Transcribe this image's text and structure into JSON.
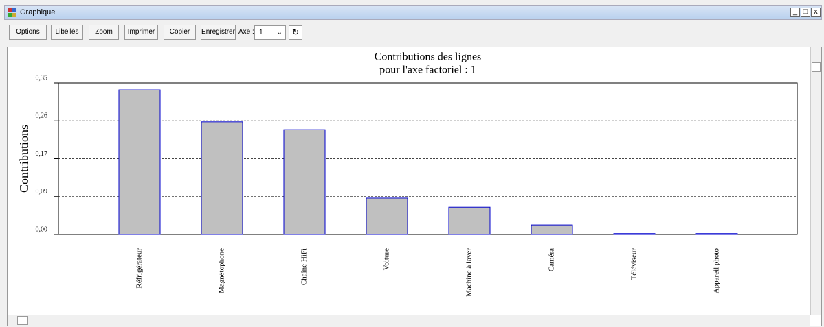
{
  "window": {
    "title": "Graphique"
  },
  "toolbar": {
    "buttons": [
      "Options",
      "Libellés",
      "Zoom",
      "Imprimer",
      "Copier",
      "Enregistrer"
    ],
    "axis_label": "Axe :",
    "axis_value": "1"
  },
  "chart_data": {
    "type": "bar",
    "title": "Contributions des lignes",
    "subtitle": "pour l'axe factoriel : 1",
    "y_label": "Contributions",
    "categories": [
      "Réfrigérateur",
      "Magnétophone",
      "Chaîne HiFi",
      "Voiture",
      "Machine à laver",
      "Caméra",
      "Téléviseur",
      "Appareil photo"
    ],
    "values": [
      0.334,
      0.26,
      0.242,
      0.084,
      0.063,
      0.022,
      0.002,
      0.002
    ],
    "color": "#c0c0c0",
    "edge_color": "#0000cc",
    "ylim": [
      0,
      0.35
    ],
    "yticks": [
      {
        "value": 0,
        "label": "0,00"
      },
      {
        "value": 0.0875,
        "label": "0,09"
      },
      {
        "value": 0.175,
        "label": "0,17"
      },
      {
        "value": 0.2625,
        "label": "0,26"
      },
      {
        "value": 0.35,
        "label": "0,35"
      }
    ],
    "grid": true
  }
}
